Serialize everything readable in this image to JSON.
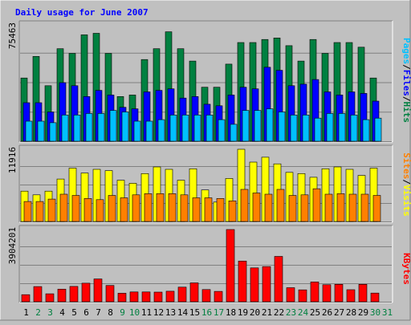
{
  "chart_data": [
    {
      "type": "bar",
      "title": "Daily usage for June 2007",
      "panel": "hits-files-pages",
      "y_max_label": "75463",
      "ylim": [
        0,
        75463
      ],
      "categories": [
        "1",
        "2",
        "3",
        "4",
        "5",
        "6",
        "7",
        "8",
        "9",
        "10",
        "11",
        "12",
        "13",
        "14",
        "15",
        "16",
        "17",
        "18",
        "19",
        "20",
        "21",
        "22",
        "23",
        "24",
        "25",
        "26",
        "27",
        "28",
        "29",
        "30",
        "31"
      ],
      "series": [
        {
          "name": "Hits",
          "color": "#008040",
          "values": [
            41000,
            55000,
            36000,
            60000,
            57000,
            69000,
            70000,
            57000,
            29000,
            30000,
            53000,
            60000,
            71000,
            60000,
            52000,
            35000,
            35000,
            50000,
            64000,
            64000,
            66000,
            67000,
            62000,
            52000,
            66000,
            57000,
            64000,
            64000,
            61000,
            41000,
            0
          ]
        },
        {
          "name": "Files",
          "color": "#0000ff",
          "values": [
            25000,
            25000,
            19000,
            38000,
            36000,
            29000,
            33000,
            30000,
            22000,
            21000,
            32000,
            33000,
            34000,
            28000,
            29000,
            24000,
            23000,
            30000,
            35000,
            34000,
            48000,
            46000,
            36000,
            37000,
            40000,
            32000,
            30000,
            32000,
            31000,
            26000,
            0
          ]
        },
        {
          "name": "Pages",
          "color": "#00c0ff",
          "values": [
            13000,
            13000,
            12000,
            17000,
            17000,
            18000,
            18000,
            20000,
            19000,
            13000,
            13000,
            14000,
            17000,
            17000,
            17000,
            17000,
            14000,
            11000,
            20000,
            20000,
            21000,
            19000,
            17000,
            17000,
            15000,
            18000,
            18000,
            17000,
            14000,
            15000,
            0
          ]
        }
      ],
      "legend": [
        "Pages",
        "/",
        "Files",
        "/",
        "Hits"
      ],
      "legend_position": "right",
      "grid": true
    },
    {
      "type": "bar",
      "panel": "visits-sites",
      "y_max_label": "11916",
      "ylim": [
        0,
        11916
      ],
      "categories": [
        "1",
        "2",
        "3",
        "4",
        "5",
        "6",
        "7",
        "8",
        "9",
        "10",
        "11",
        "12",
        "13",
        "14",
        "15",
        "16",
        "17",
        "18",
        "19",
        "20",
        "21",
        "22",
        "23",
        "24",
        "25",
        "26",
        "27",
        "28",
        "29",
        "30",
        "31"
      ],
      "series": [
        {
          "name": "Visits",
          "color": "#ffff00",
          "values": [
            5000,
            4400,
            5000,
            7000,
            8800,
            8000,
            8600,
            8400,
            6800,
            6300,
            7900,
            9000,
            8600,
            6800,
            8700,
            5200,
            3200,
            7100,
            11916,
            9800,
            10600,
            9500,
            8100,
            7900,
            7300,
            8700,
            9000,
            8600,
            7600,
            8800,
            0
          ]
        },
        {
          "name": "Sites",
          "color": "#ff8000",
          "values": [
            3300,
            3300,
            3700,
            4500,
            4300,
            3800,
            3600,
            4300,
            3900,
            4400,
            4600,
            4600,
            4600,
            4400,
            3900,
            3900,
            3800,
            3400,
            5300,
            4700,
            4500,
            5300,
            4300,
            4400,
            5400,
            4500,
            4600,
            4500,
            4500,
            4300,
            0
          ]
        }
      ],
      "legend": [
        "Sites",
        "/",
        "Visits"
      ],
      "legend_position": "right",
      "grid": true
    },
    {
      "type": "bar",
      "panel": "kbytes",
      "y_max_label": "3904201",
      "ylim": [
        0,
        3904201
      ],
      "categories": [
        "1",
        "2",
        "3",
        "4",
        "5",
        "6",
        "7",
        "8",
        "9",
        "10",
        "11",
        "12",
        "13",
        "14",
        "15",
        "16",
        "17",
        "18",
        "19",
        "20",
        "21",
        "22",
        "23",
        "24",
        "25",
        "26",
        "27",
        "28",
        "29",
        "30",
        "31"
      ],
      "series": [
        {
          "name": "KBytes",
          "color": "#ff0000",
          "values": [
            380000,
            820000,
            430000,
            680000,
            830000,
            1000000,
            1230000,
            880000,
            460000,
            530000,
            530000,
            520000,
            570000,
            790000,
            1020000,
            660000,
            560000,
            3904201,
            2200000,
            1830000,
            1900000,
            2450000,
            760000,
            640000,
            1070000,
            920000,
            940000,
            650000,
            940000,
            470000,
            0
          ]
        }
      ],
      "legend": [
        "KBytes"
      ],
      "legend_position": "right",
      "grid": true
    }
  ],
  "x_ticks": [
    {
      "label": "1",
      "weekend": false
    },
    {
      "label": "2",
      "weekend": true
    },
    {
      "label": "3",
      "weekend": true
    },
    {
      "label": "4",
      "weekend": false
    },
    {
      "label": "5",
      "weekend": false
    },
    {
      "label": "6",
      "weekend": false
    },
    {
      "label": "7",
      "weekend": false
    },
    {
      "label": "8",
      "weekend": false
    },
    {
      "label": "9",
      "weekend": true
    },
    {
      "label": "10",
      "weekend": true
    },
    {
      "label": "11",
      "weekend": false
    },
    {
      "label": "12",
      "weekend": false
    },
    {
      "label": "13",
      "weekend": false
    },
    {
      "label": "14",
      "weekend": false
    },
    {
      "label": "15",
      "weekend": false
    },
    {
      "label": "16",
      "weekend": true
    },
    {
      "label": "17",
      "weekend": true
    },
    {
      "label": "18",
      "weekend": false
    },
    {
      "label": "19",
      "weekend": false
    },
    {
      "label": "20",
      "weekend": false
    },
    {
      "label": "21",
      "weekend": false
    },
    {
      "label": "22",
      "weekend": false
    },
    {
      "label": "23",
      "weekend": true
    },
    {
      "label": "24",
      "weekend": true
    },
    {
      "label": "25",
      "weekend": false
    },
    {
      "label": "26",
      "weekend": false
    },
    {
      "label": "27",
      "weekend": false
    },
    {
      "label": "28",
      "weekend": false
    },
    {
      "label": "29",
      "weekend": false
    },
    {
      "label": "30",
      "weekend": true
    },
    {
      "label": "31",
      "weekend": true
    }
  ],
  "colors": {
    "background": "#c0c0c0",
    "title": "#0000ff",
    "weekday_label": "#000000",
    "weekend_label": "#008040",
    "separator": "#808080"
  }
}
